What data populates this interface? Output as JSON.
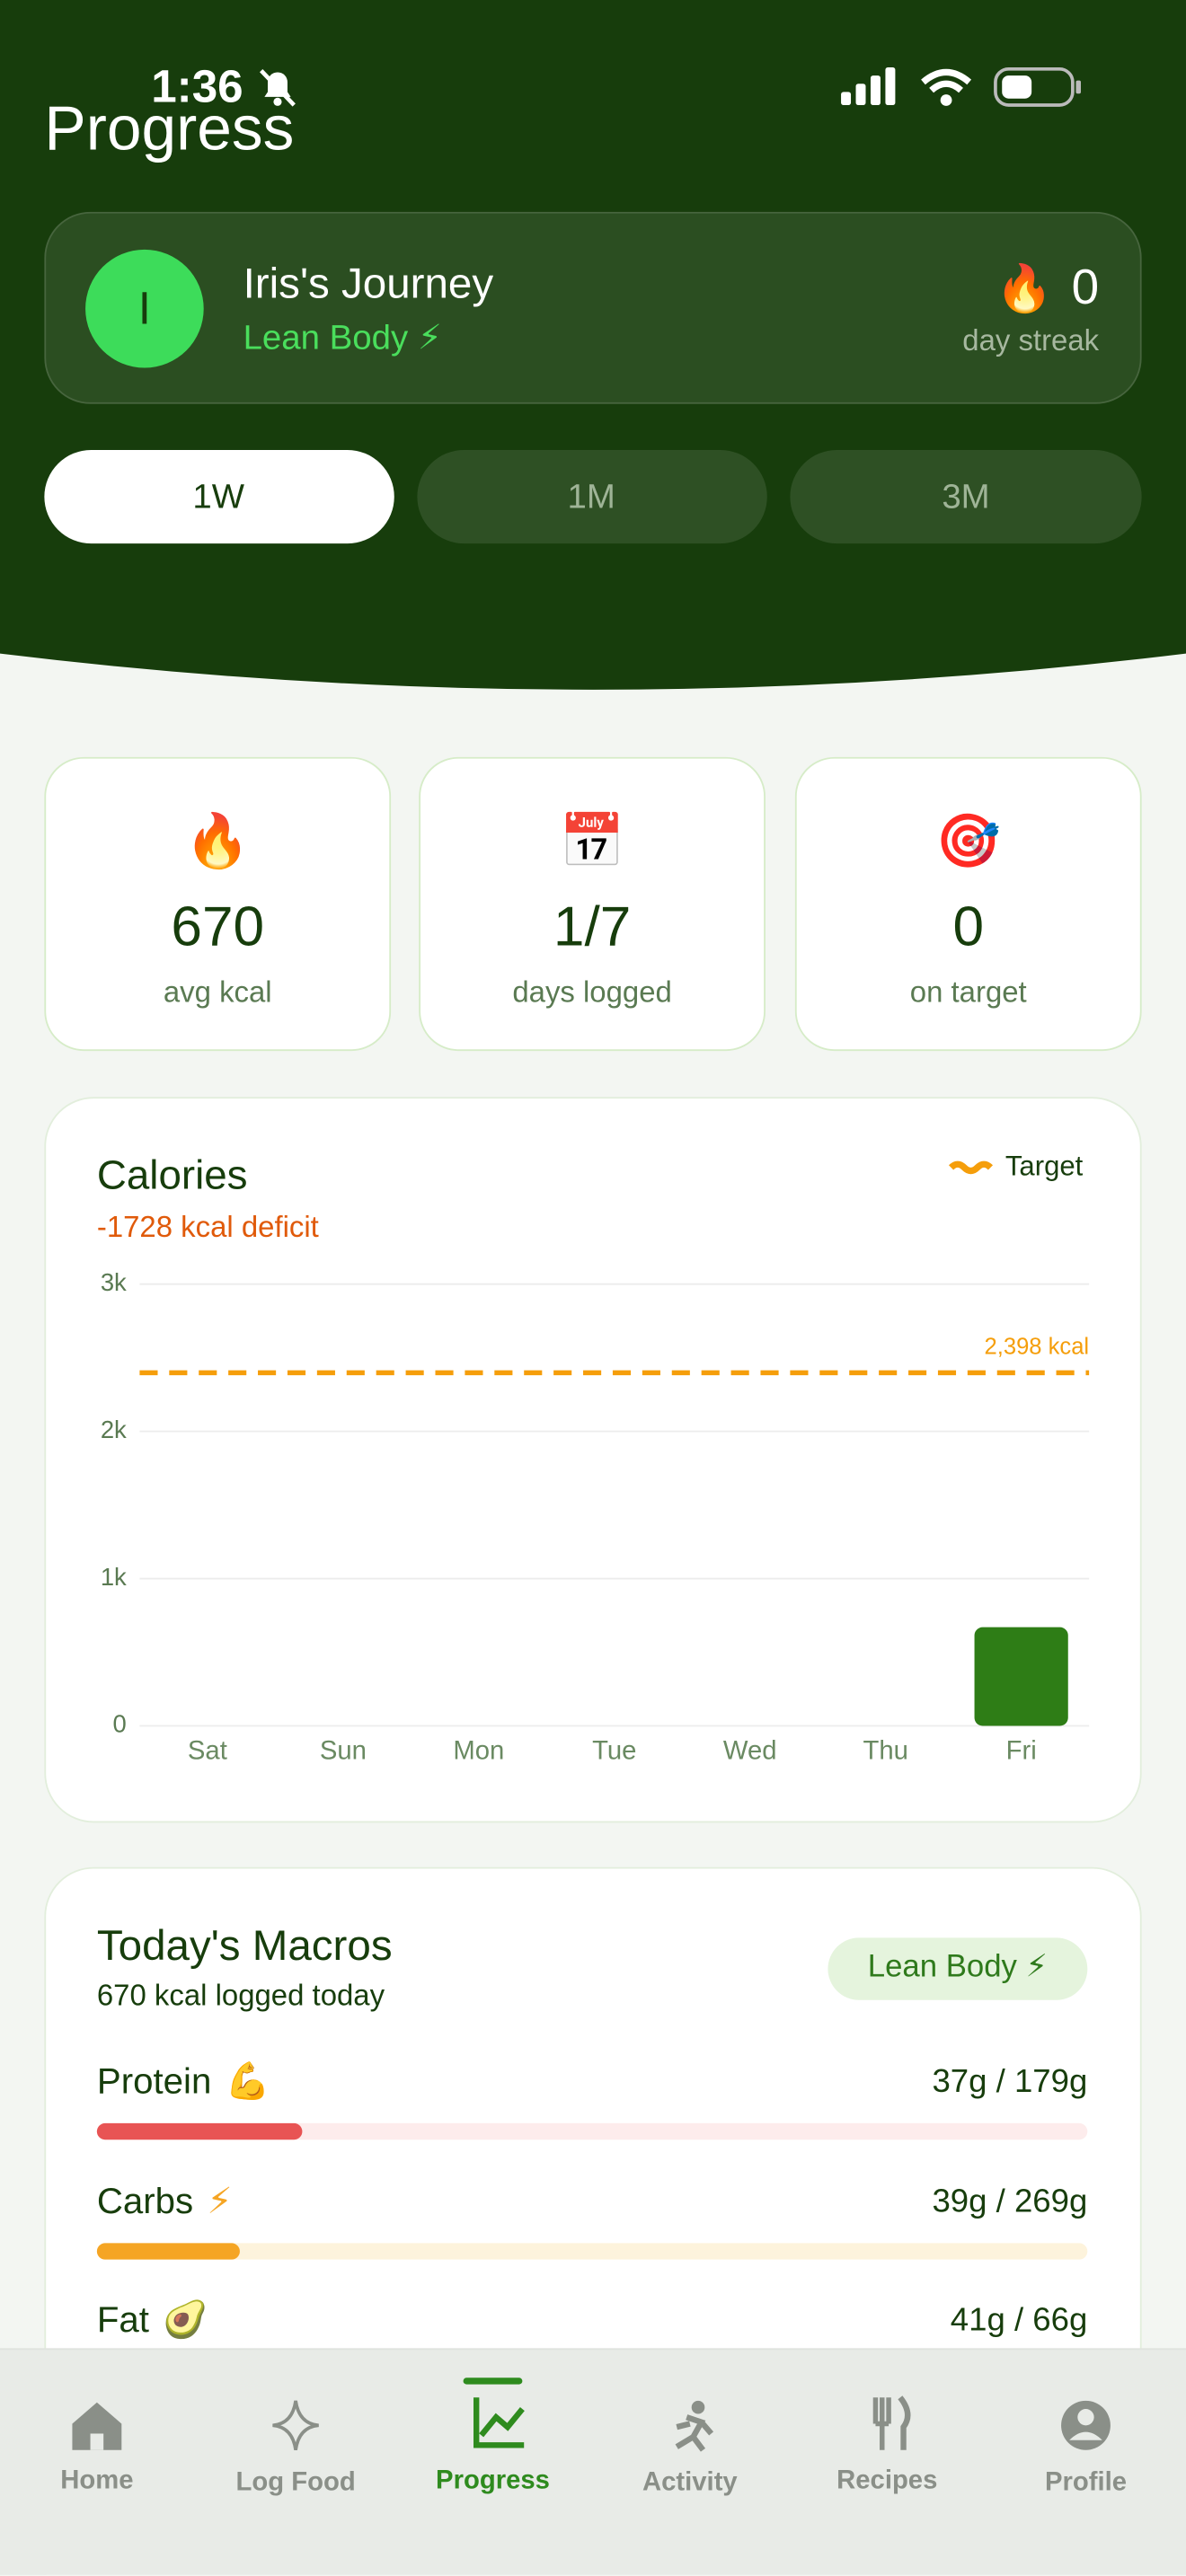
{
  "status_bar": {
    "time": "1:36"
  },
  "header": {
    "title": "Progress"
  },
  "profile": {
    "initial": "I",
    "name": "Iris's Journey",
    "goal": "Lean Body ⚡",
    "streak_icon": "🔥",
    "streak": 0,
    "streak_label": "day streak"
  },
  "range_tabs": {
    "options": [
      "1W",
      "1M",
      "3M"
    ],
    "selected": 0
  },
  "stats": [
    {
      "icon": "🔥",
      "value": 670,
      "label": "avg kcal"
    },
    {
      "icon": "📅",
      "value": "1/7",
      "label": "days logged"
    },
    {
      "icon": "🎯",
      "value": 0,
      "label": "on target"
    }
  ],
  "calories": {
    "title": "Calories",
    "subtitle": "-1728 kcal deficit",
    "legend": "Target",
    "chart_data": {
      "type": "bar",
      "categories": [
        "Sat",
        "Sun",
        "Mon",
        "Tue",
        "Wed",
        "Thu",
        "Fri"
      ],
      "values": [
        0,
        0,
        0,
        0,
        0,
        0,
        670
      ],
      "color": "#2e7d16",
      "ylim": [
        0,
        3000
      ],
      "yticks": [
        0,
        {
          "value": 1000,
          "label": "1k"
        },
        {
          "value": 2000,
          "label": "2k"
        },
        {
          "value": 3000,
          "label": "3k"
        }
      ],
      "grid": true,
      "target": {
        "value": 2398,
        "label": "2,398 kcal",
        "color": "#f59e0b"
      }
    }
  },
  "macros": {
    "title": "Today's Macros",
    "subtitle": "670 kcal logged today",
    "badge": "Lean Body ⚡",
    "items": [
      {
        "name": "Protein",
        "icon": "💪",
        "amount": "37g / 179g",
        "consumed": 37,
        "goal": 179,
        "color": "#e85454",
        "track": "#fdecec"
      },
      {
        "name": "Carbs",
        "icon": "⚡",
        "amount": "39g / 269g",
        "consumed": 39,
        "goal": 269,
        "color": "#f5a524",
        "track": "#fdf3dc"
      },
      {
        "name": "Fat",
        "icon": "🥑",
        "amount": "41g / 66g",
        "consumed": 41,
        "goal": 66,
        "color": "#8bc34a",
        "track": "#eef6e4"
      }
    ]
  },
  "nav": {
    "items": [
      {
        "label": "Home"
      },
      {
        "label": "Log Food"
      },
      {
        "label": "Progress"
      },
      {
        "label": "Activity"
      },
      {
        "label": "Recipes"
      },
      {
        "label": "Profile"
      }
    ],
    "active": 2
  }
}
